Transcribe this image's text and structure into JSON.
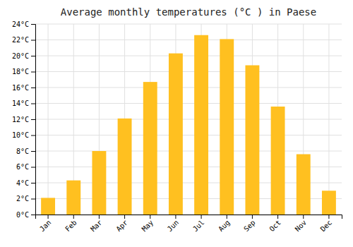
{
  "chart_data": {
    "type": "bar",
    "title": "Average monthly temperatures (°C ) in Paese",
    "categories": [
      "Jan",
      "Feb",
      "Mar",
      "Apr",
      "May",
      "Jun",
      "Jul",
      "Aug",
      "Sep",
      "Oct",
      "Nov",
      "Dec"
    ],
    "values": [
      2.1,
      4.3,
      8.0,
      12.1,
      16.7,
      20.3,
      22.6,
      22.1,
      18.8,
      13.6,
      7.6,
      3.0
    ],
    "color": "#FFC020",
    "ylim": [
      0,
      24
    ],
    "yticks": [
      {
        "value": 0,
        "label": "0°C"
      },
      {
        "value": 2,
        "label": "2°C"
      },
      {
        "value": 4,
        "label": "4°C"
      },
      {
        "value": 6,
        "label": "6°C"
      },
      {
        "value": 8,
        "label": "8°C"
      },
      {
        "value": 10,
        "label": "10°C"
      },
      {
        "value": 12,
        "label": "12°C"
      },
      {
        "value": 14,
        "label": "14°C"
      },
      {
        "value": 16,
        "label": "16°C"
      },
      {
        "value": 18,
        "label": "18°C"
      },
      {
        "value": 20,
        "label": "20°C"
      },
      {
        "value": 22,
        "label": "22°C"
      },
      {
        "value": 24,
        "label": "24°C"
      }
    ],
    "grid": true
  }
}
